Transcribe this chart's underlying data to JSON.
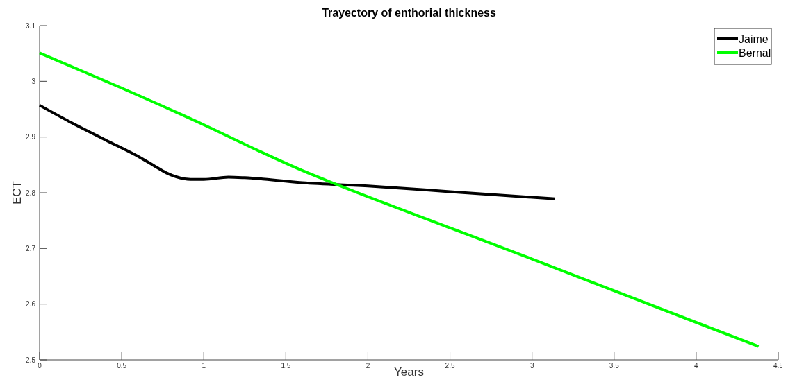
{
  "chart_data": {
    "type": "line",
    "title": "Trayectory of enthorial thickness",
    "xlabel": "Years",
    "ylabel": "ECT",
    "xlim": [
      0,
      4.5
    ],
    "xticks": [
      0,
      0.5,
      1,
      1.5,
      2,
      2.5,
      3,
      3.5,
      4,
      4.5
    ],
    "ylim": [
      2.5,
      3.1
    ],
    "yticks": [
      2.5,
      2.6,
      2.7,
      2.8,
      2.9,
      3,
      3.1
    ],
    "legend": "top right",
    "grid": false,
    "series": [
      {
        "name": "Jaime",
        "color": "#000000",
        "x": [
          0,
          0.18,
          0.4,
          0.62,
          0.7,
          0.77,
          0.92,
          1.0,
          1.15,
          1.25,
          1.6,
          2.0,
          2.5,
          3.14
        ],
        "values": [
          2.957,
          2.928,
          2.895,
          2.862,
          2.848,
          2.836,
          2.824,
          2.824,
          2.828,
          2.827,
          2.818,
          2.812,
          2.802,
          2.789
        ]
      },
      {
        "name": "Bernal",
        "color": "#00ff00",
        "x": [
          0,
          0.5,
          1.0,
          1.3,
          1.6,
          1.8,
          2.5,
          3.0,
          3.5,
          4.38
        ],
        "values": [
          3.051,
          2.988,
          2.922,
          2.88,
          2.84,
          2.816,
          2.737,
          2.681,
          2.624,
          2.524
        ]
      }
    ]
  }
}
